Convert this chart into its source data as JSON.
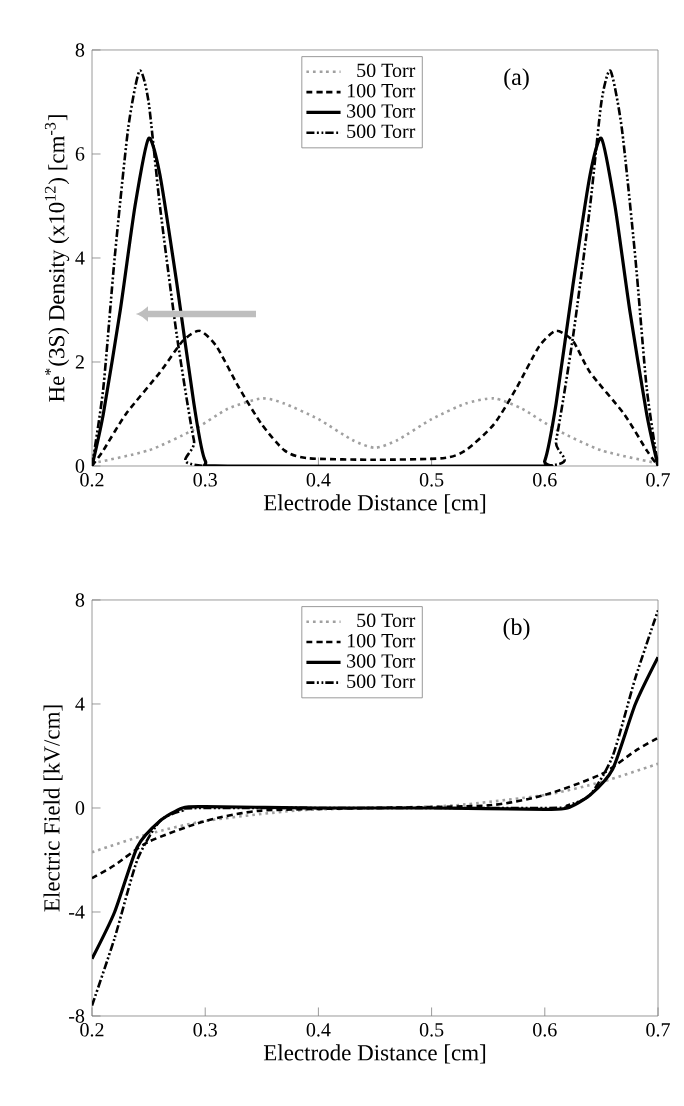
{
  "chart_data": [
    {
      "type": "line",
      "xlabel": "Electrode Distance [cm]",
      "ylabel": "He$^{*}$(3S) Density (x10$^{12}$) [cm$^{-3}$]",
      "annotations": [
        "(a)"
      ],
      "xlim": [
        0.2,
        0.7
      ],
      "xticks": [
        0.2,
        0.3,
        0.4,
        0.5,
        0.6,
        0.7
      ],
      "ylim": [
        0,
        8
      ],
      "yticks": [
        0,
        2,
        4,
        6,
        8
      ],
      "legend": "top right",
      "grid": false,
      "marker": "none",
      "series": [
        {
          "name": "50 Torr",
          "color": "#a0a0a0",
          "line_style": "dotted",
          "x": [
            0.2,
            0.25,
            0.29,
            0.32,
            0.35,
            0.37,
            0.4,
            0.43,
            0.45,
            0.47,
            0.5,
            0.53,
            0.555,
            0.58,
            0.61,
            0.65,
            0.7
          ],
          "values": [
            0.05,
            0.3,
            0.7,
            1.1,
            1.3,
            1.2,
            0.9,
            0.5,
            0.35,
            0.5,
            0.9,
            1.2,
            1.3,
            1.1,
            0.7,
            0.3,
            0.05
          ]
        },
        {
          "name": "100 Torr",
          "color": "#000000",
          "line_style": "dashed",
          "x": [
            0.2,
            0.21,
            0.23,
            0.26,
            0.28,
            0.295,
            0.31,
            0.33,
            0.35,
            0.37,
            0.39,
            0.45,
            0.51,
            0.53,
            0.555,
            0.575,
            0.595,
            0.61,
            0.625,
            0.64,
            0.67,
            0.69,
            0.7
          ],
          "values": [
            0,
            0.3,
            1.0,
            1.8,
            2.4,
            2.6,
            2.3,
            1.5,
            0.8,
            0.3,
            0.15,
            0.12,
            0.15,
            0.3,
            0.8,
            1.5,
            2.3,
            2.6,
            2.4,
            1.8,
            1.0,
            0.3,
            0
          ]
        },
        {
          "name": "300 Torr",
          "color": "#000000",
          "line_style": "solid",
          "x": [
            0.2,
            0.21,
            0.225,
            0.238,
            0.25,
            0.26,
            0.275,
            0.29,
            0.3,
            0.32,
            0.59,
            0.6,
            0.61,
            0.625,
            0.64,
            0.65,
            0.662,
            0.675,
            0.69,
            0.7
          ],
          "values": [
            0,
            1.0,
            3.0,
            5.0,
            6.3,
            5.6,
            3.5,
            1.2,
            0.1,
            0,
            0,
            0.1,
            1.2,
            3.5,
            5.6,
            6.3,
            5.0,
            3.0,
            1.0,
            0
          ]
        },
        {
          "name": "500 Torr",
          "color": "#000000",
          "line_style": "dashdotdotted",
          "x": [
            0.2,
            0.21,
            0.22,
            0.232,
            0.242,
            0.25,
            0.26,
            0.275,
            0.29,
            0.3,
            0.6,
            0.61,
            0.625,
            0.64,
            0.65,
            0.658,
            0.668,
            0.68,
            0.69,
            0.7
          ],
          "values": [
            0,
            1.5,
            4.0,
            6.5,
            7.6,
            7.0,
            5.0,
            2.5,
            0.5,
            0,
            0,
            0.5,
            2.5,
            5.0,
            7.0,
            7.6,
            6.5,
            4.0,
            1.5,
            0
          ]
        }
      ]
    },
    {
      "type": "line",
      "xlabel": "Electrode Distance [cm]",
      "ylabel": "Electric Field  [kV/cm]",
      "annotations": [
        "(b)"
      ],
      "xlim": [
        0.2,
        0.7
      ],
      "xticks": [
        0.2,
        0.3,
        0.4,
        0.5,
        0.6,
        0.7
      ],
      "ylim": [
        -8,
        8
      ],
      "yticks": [
        -8,
        -4,
        0,
        4,
        8
      ],
      "legend": "top right",
      "grid": false,
      "marker": "none",
      "series": [
        {
          "name": "50 Torr",
          "color": "#a0a0a0",
          "line_style": "dotted",
          "x": [
            0.2,
            0.25,
            0.3,
            0.38,
            0.45,
            0.52,
            0.6,
            0.65,
            0.7
          ],
          "values": [
            -1.7,
            -1.0,
            -0.5,
            -0.1,
            0,
            0.1,
            0.5,
            1.0,
            1.7
          ]
        },
        {
          "name": "100 Torr",
          "color": "#000000",
          "line_style": "dashed",
          "x": [
            0.2,
            0.22,
            0.25,
            0.3,
            0.35,
            0.45,
            0.55,
            0.6,
            0.65,
            0.68,
            0.7
          ],
          "values": [
            -2.7,
            -2.2,
            -1.3,
            -0.5,
            -0.1,
            0,
            0.1,
            0.5,
            1.3,
            2.2,
            2.7
          ]
        },
        {
          "name": "300 Torr",
          "color": "#000000",
          "line_style": "solid",
          "x": [
            0.2,
            0.22,
            0.24,
            0.26,
            0.28,
            0.3,
            0.4,
            0.5,
            0.6,
            0.62,
            0.64,
            0.66,
            0.68,
            0.7
          ],
          "values": [
            -5.8,
            -4.0,
            -1.5,
            -0.5,
            0,
            0.05,
            0,
            0,
            -0.05,
            0,
            0.5,
            1.5,
            4.0,
            5.8
          ]
        },
        {
          "name": "500 Torr",
          "color": "#000000",
          "line_style": "dashdotdotted",
          "x": [
            0.2,
            0.22,
            0.24,
            0.26,
            0.28,
            0.3,
            0.6,
            0.62,
            0.64,
            0.66,
            0.68,
            0.7
          ],
          "values": [
            -7.6,
            -5.0,
            -2.0,
            -0.5,
            -0.1,
            0,
            0,
            0.1,
            0.5,
            2.0,
            5.0,
            7.6
          ]
        }
      ]
    }
  ]
}
